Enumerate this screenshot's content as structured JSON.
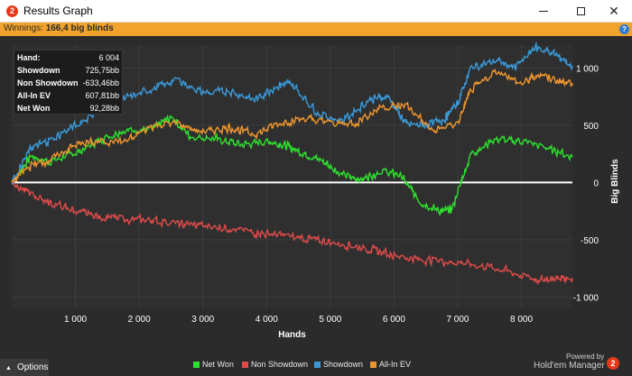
{
  "window": {
    "title": "Results Graph",
    "minimize_icon": "minimize-icon",
    "maximize_icon": "maximize-icon",
    "close_icon": "close-icon",
    "close_glyph": "✕"
  },
  "winnings_bar": {
    "label": "Winnings:",
    "value": "166,4 big blinds",
    "help_glyph": "?"
  },
  "stats": {
    "rows": [
      {
        "label": "Hand:",
        "value": "6 004"
      },
      {
        "label": "Showdown",
        "value": "725,75bb"
      },
      {
        "label": "Non Showdown",
        "value": "-633,46bb"
      },
      {
        "label": "All-In EV",
        "value": "607,81bb"
      },
      {
        "label": "Net Won",
        "value": "92,28bb"
      }
    ]
  },
  "options_button": {
    "label": "Options"
  },
  "powered_by": {
    "prefix": "Powered by",
    "name": "Hold'em Manager",
    "logo_glyph": "2"
  },
  "app_icon_glyph": "2",
  "chart_data": {
    "type": "line",
    "xlabel": "Hands",
    "ylabel": "Big Blinds",
    "x_ticks": [
      1000,
      2000,
      3000,
      4000,
      5000,
      6000,
      7000,
      8000
    ],
    "x_tick_labels": [
      "1 000",
      "2 000",
      "3 000",
      "4 000",
      "5 000",
      "6 000",
      "7 000",
      "8 000"
    ],
    "y_ticks": [
      1000,
      500,
      0,
      -500,
      -1000
    ],
    "y_tick_labels": [
      "1 000",
      "500",
      "0",
      "-500",
      "-1 000"
    ],
    "xlim": [
      0,
      8800
    ],
    "ylim": [
      -1100,
      1200
    ],
    "grid": true,
    "legend_position": "bottom",
    "series": [
      {
        "name": "Net Won",
        "color": "#2ee02e",
        "x": [
          0,
          300,
          600,
          1000,
          1400,
          1800,
          2200,
          2500,
          2800,
          3200,
          3600,
          4000,
          4300,
          4600,
          4900,
          5200,
          5500,
          5800,
          6100,
          6400,
          6700,
          6900,
          7200,
          7600,
          8000,
          8400,
          8800
        ],
        "y": [
          0,
          230,
          180,
          260,
          380,
          460,
          470,
          570,
          400,
          380,
          330,
          360,
          320,
          250,
          180,
          60,
          30,
          100,
          60,
          -170,
          -250,
          -240,
          250,
          380,
          360,
          300,
          220
        ]
      },
      {
        "name": "Non Showdown",
        "color": "#e04a4a",
        "x": [
          0,
          300,
          600,
          1000,
          1400,
          1800,
          2200,
          2600,
          3000,
          3400,
          3800,
          4200,
          4600,
          5000,
          5400,
          5800,
          6200,
          6600,
          7000,
          7400,
          7800,
          8200,
          8500,
          8800
        ],
        "y": [
          0,
          -100,
          -180,
          -250,
          -300,
          -320,
          -330,
          -360,
          -380,
          -400,
          -440,
          -460,
          -490,
          -520,
          -560,
          -610,
          -660,
          -680,
          -700,
          -730,
          -780,
          -850,
          -840,
          -835
        ]
      },
      {
        "name": "Showdown",
        "color": "#3a99d8",
        "x": [
          0,
          300,
          600,
          1000,
          1400,
          1800,
          2200,
          2600,
          3000,
          3400,
          3800,
          4200,
          4400,
          4800,
          5200,
          5600,
          5900,
          6200,
          6500,
          6800,
          7000,
          7200,
          7600,
          7900,
          8200,
          8500,
          8800
        ],
        "y": [
          0,
          300,
          370,
          500,
          640,
          740,
          820,
          900,
          780,
          800,
          720,
          860,
          860,
          600,
          540,
          720,
          750,
          500,
          500,
          560,
          700,
          1000,
          1070,
          1000,
          1180,
          1130,
          1020
        ]
      },
      {
        "name": "All-In EV",
        "color": "#f0962e",
        "x": [
          0,
          300,
          600,
          1000,
          1400,
          1800,
          2200,
          2600,
          3000,
          3400,
          3800,
          4200,
          4600,
          5000,
          5400,
          5800,
          6200,
          6600,
          7000,
          7200,
          7600,
          8000,
          8300,
          8600,
          8800
        ],
        "y": [
          0,
          150,
          200,
          330,
          360,
          360,
          500,
          520,
          440,
          480,
          420,
          520,
          560,
          520,
          520,
          660,
          670,
          450,
          520,
          800,
          980,
          860,
          950,
          880,
          870
        ]
      }
    ]
  }
}
